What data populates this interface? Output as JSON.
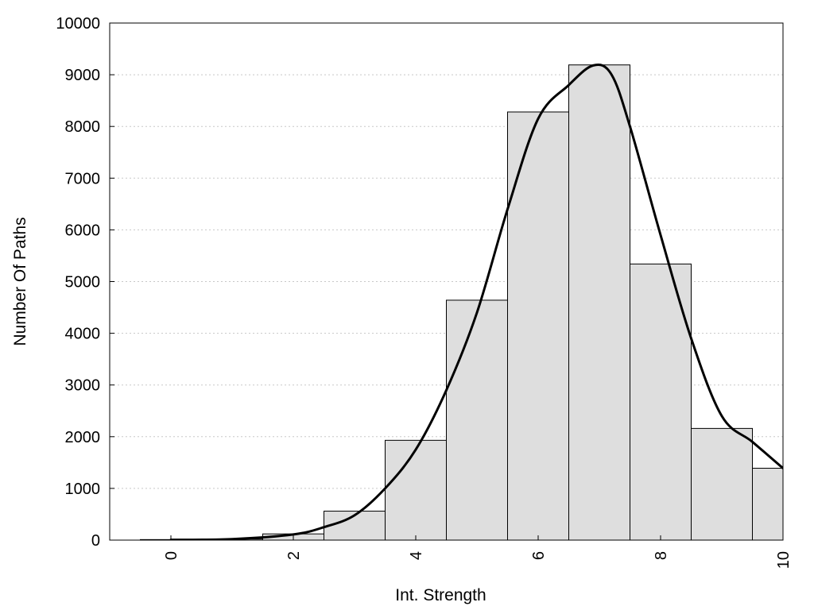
{
  "chart_data": {
    "type": "bar",
    "xlabel": "Int. Strength",
    "ylabel": "Number Of Paths",
    "xlim": [
      -1,
      10
    ],
    "ylim": [
      0,
      10000
    ],
    "grid": "horizontal dotted",
    "x_ticks": [
      0,
      2,
      4,
      6,
      8,
      10
    ],
    "y_ticks": [
      0,
      1000,
      2000,
      3000,
      4000,
      5000,
      6000,
      7000,
      8000,
      9000,
      10000
    ],
    "bin_width": 1,
    "bars": [
      {
        "x": 0,
        "value": 10
      },
      {
        "x": 1,
        "value": 20
      },
      {
        "x": 2,
        "value": 120
      },
      {
        "x": 3,
        "value": 560
      },
      {
        "x": 4,
        "value": 1930
      },
      {
        "x": 5,
        "value": 4640
      },
      {
        "x": 6,
        "value": 8280
      },
      {
        "x": 7,
        "value": 9190
      },
      {
        "x": 8,
        "value": 5340
      },
      {
        "x": 9,
        "value": 2160
      },
      {
        "x": 10,
        "value": 1390
      }
    ],
    "curve": {
      "type": "line",
      "points": [
        [
          0,
          5
        ],
        [
          1,
          20
        ],
        [
          2,
          110
        ],
        [
          2.5,
          250
        ],
        [
          3,
          480
        ],
        [
          3.5,
          1000
        ],
        [
          4,
          1750
        ],
        [
          4.5,
          2900
        ],
        [
          5,
          4400
        ],
        [
          5.5,
          6400
        ],
        [
          6,
          8150
        ],
        [
          6.5,
          8800
        ],
        [
          6.9,
          9180
        ],
        [
          7.2,
          9000
        ],
        [
          7.5,
          8000
        ],
        [
          8,
          5900
        ],
        [
          8.5,
          3900
        ],
        [
          9,
          2400
        ],
        [
          9.5,
          1900
        ],
        [
          10,
          1390
        ]
      ]
    }
  }
}
